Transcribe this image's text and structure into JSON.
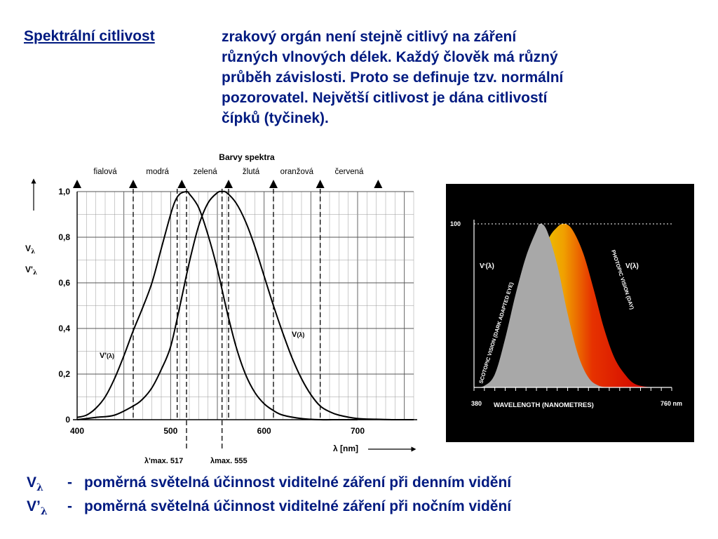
{
  "header": {
    "term": "Spektrální citlivost",
    "lines": [
      "zrakový orgán není stejně citlivý na záření",
      "různých vlnových délek. Každý člověk má různý",
      "průběh závislosti. Proto se definuje tzv. normální",
      "pozorovatel. Největší citlivost je dána citlivostí",
      "čípků (tyčinek)."
    ]
  },
  "legend": [
    {
      "symbol": "V",
      "sub": "λ",
      "dash": "-",
      "text": "poměrná světelná účinnost viditelné záření při denním vidění"
    },
    {
      "symbol": "V’",
      "sub": "λ",
      "dash": "-",
      "text": "poměrná světelná účinnost viditelné záření při nočním vidění"
    }
  ],
  "chart_data": [
    {
      "type": "line",
      "title": "Barvy spektra",
      "colors_top": [
        "fialová",
        "modrá",
        "zelená",
        "žlutá",
        "oranžová",
        "červená"
      ],
      "color_markers_nm": [
        400,
        460,
        512,
        562,
        610,
        660,
        722
      ],
      "color_label_nm": [
        430,
        486,
        537,
        586,
        635,
        691
      ],
      "xlabel": "λ [nm]",
      "ylabel_lines": [
        "Vλ",
        "V'λ"
      ],
      "xlim": [
        400,
        760
      ],
      "ylim": [
        0,
        1.0
      ],
      "x_ticks": [
        "400",
        "500",
        "600",
        "700"
      ],
      "x_tick_values": [
        400,
        500,
        600,
        700
      ],
      "y_ticks": [
        "0",
        "0,2",
        "0,4",
        "0,6",
        "0,8",
        "1,0"
      ],
      "y_tick_values": [
        0,
        0.2,
        0.4,
        0.6,
        0.8,
        1.0
      ],
      "dashed_lines_nm": [
        460,
        507,
        517,
        555,
        562,
        610,
        660
      ],
      "annotations": {
        "scotopic_peak": "λ'max. 517",
        "photopic_peak": "λmax. 555"
      },
      "series": [
        {
          "name": "V'(λ)",
          "x": [
            400,
            410,
            420,
            430,
            440,
            450,
            460,
            470,
            480,
            490,
            500,
            505,
            510,
            517,
            520,
            530,
            540,
            550,
            560,
            570,
            580,
            590,
            600,
            610,
            620,
            640,
            660,
            680,
            700
          ],
          "y": [
            0.01,
            0.02,
            0.05,
            0.1,
            0.18,
            0.28,
            0.39,
            0.49,
            0.6,
            0.75,
            0.9,
            0.96,
            0.99,
            1.0,
            0.99,
            0.93,
            0.81,
            0.66,
            0.48,
            0.32,
            0.2,
            0.12,
            0.07,
            0.04,
            0.02,
            0.005,
            0.0,
            0.0,
            0.0
          ]
        },
        {
          "name": "V(λ)",
          "x": [
            400,
            420,
            440,
            460,
            470,
            480,
            490,
            500,
            510,
            520,
            530,
            540,
            550,
            555,
            560,
            570,
            580,
            590,
            600,
            610,
            620,
            630,
            640,
            650,
            660,
            670,
            680,
            700,
            720,
            740,
            760
          ],
          "y": [
            0.0,
            0.01,
            0.02,
            0.06,
            0.09,
            0.14,
            0.22,
            0.32,
            0.5,
            0.69,
            0.85,
            0.95,
            0.995,
            1.0,
            0.995,
            0.95,
            0.87,
            0.76,
            0.63,
            0.5,
            0.38,
            0.27,
            0.18,
            0.11,
            0.06,
            0.035,
            0.02,
            0.005,
            0.002,
            0.0,
            0.0
          ]
        }
      ]
    },
    {
      "type": "area",
      "xlabel": "WAVELENGTH (NANOMETRES)",
      "x_ticks": [
        "380",
        "760 nm"
      ],
      "y_ticks": [
        "100"
      ],
      "xlim": [
        380,
        760
      ],
      "ylim": [
        0,
        100
      ],
      "series": [
        {
          "name": "V'(λ)",
          "label": "SCOTOPIC VISION (DARK ADAPTED EYE)",
          "color": "#a8a8a8",
          "x": [
            380,
            400,
            420,
            440,
            460,
            480,
            500,
            507,
            520,
            540,
            560,
            580,
            600,
            620,
            640
          ],
          "y": [
            0,
            1,
            8,
            30,
            57,
            80,
            96,
            100,
            96,
            75,
            45,
            20,
            6,
            1,
            0
          ]
        },
        {
          "name": "V(λ)",
          "label": "PHOTOPIC VISION (DAY)",
          "color": "#e23200",
          "x": [
            470,
            500,
            520,
            540,
            555,
            570,
            590,
            610,
            630,
            650,
            670,
            690,
            720
          ],
          "y": [
            0,
            60,
            88,
            98,
            100,
            96,
            82,
            60,
            36,
            18,
            8,
            2,
            0
          ]
        }
      ]
    }
  ]
}
